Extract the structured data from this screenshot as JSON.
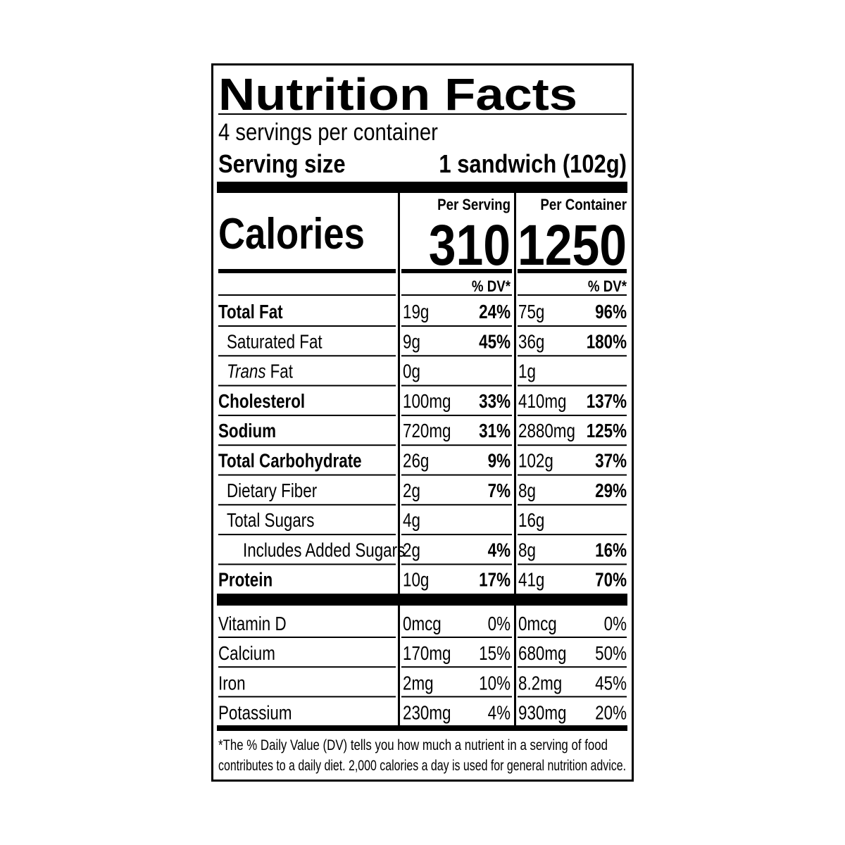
{
  "title": "Nutrition Facts",
  "servings": "4 servings per container",
  "serving_size": {
    "label": "Serving size",
    "value": "1 sandwich (102g)"
  },
  "columns": [
    "Per Serving",
    "Per Container"
  ],
  "calories": {
    "label": "Calories",
    "values": [
      310,
      1250
    ]
  },
  "dv_header": "% DV*",
  "nutrients": [
    {
      "name": "Total Fat",
      "bold": true,
      "indent": 0,
      "per_serving": {
        "amount": "19g",
        "dv": "24%"
      },
      "per_container": {
        "amount": "75g",
        "dv": "96%"
      }
    },
    {
      "name": "Saturated Fat",
      "bold": false,
      "indent": 1,
      "per_serving": {
        "amount": "9g",
        "dv": "45%"
      },
      "per_container": {
        "amount": "36g",
        "dv": "180%"
      }
    },
    {
      "name_italic_prefix": "Trans",
      "name": "Fat",
      "bold": false,
      "indent": 1,
      "per_serving": {
        "amount": "0g"
      },
      "per_container": {
        "amount": "1g"
      }
    },
    {
      "name": "Cholesterol",
      "bold": true,
      "indent": 0,
      "per_serving": {
        "amount": "100mg",
        "dv": "33%"
      },
      "per_container": {
        "amount": "410mg",
        "dv": "137%"
      }
    },
    {
      "name": "Sodium",
      "bold": true,
      "indent": 0,
      "per_serving": {
        "amount": "720mg",
        "dv": "31%"
      },
      "per_container": {
        "amount": "2880mg",
        "dv": "125%"
      }
    },
    {
      "name": "Total Carbohydrate",
      "bold": true,
      "indent": 0,
      "per_serving": {
        "amount": "26g",
        "dv": "9%"
      },
      "per_container": {
        "amount": "102g",
        "dv": "37%"
      }
    },
    {
      "name": "Dietary Fiber",
      "bold": false,
      "indent": 1,
      "per_serving": {
        "amount": "2g",
        "dv": "7%"
      },
      "per_container": {
        "amount": "8g",
        "dv": "29%"
      }
    },
    {
      "name": "Total Sugars",
      "bold": false,
      "indent": 1,
      "per_serving": {
        "amount": "4g"
      },
      "per_container": {
        "amount": "16g"
      }
    },
    {
      "name": "Includes Added Sugars",
      "bold": false,
      "indent": 2,
      "per_serving": {
        "amount": "2g",
        "dv": "4%"
      },
      "per_container": {
        "amount": "8g",
        "dv": "16%"
      }
    },
    {
      "name": "Protein",
      "bold": true,
      "indent": 0,
      "per_serving": {
        "amount": "10g",
        "dv": "17%"
      },
      "per_container": {
        "amount": "41g",
        "dv": "70%"
      }
    }
  ],
  "vitamins": [
    {
      "name": "Vitamin D",
      "per_serving": {
        "amount": "0mcg",
        "dv": "0%"
      },
      "per_container": {
        "amount": "0mcg",
        "dv": "0%"
      }
    },
    {
      "name": "Calcium",
      "per_serving": {
        "amount": "170mg",
        "dv": "15%"
      },
      "per_container": {
        "amount": "680mg",
        "dv": "50%"
      }
    },
    {
      "name": "Iron",
      "per_serving": {
        "amount": "2mg",
        "dv": "10%"
      },
      "per_container": {
        "amount": "8.2mg",
        "dv": "45%"
      }
    },
    {
      "name": "Potassium",
      "per_serving": {
        "amount": "230mg",
        "dv": "4%"
      },
      "per_container": {
        "amount": "930mg",
        "dv": "20%"
      }
    }
  ],
  "footnote": [
    "*The % Daily Value (DV) tells you how much a nutrient in a serving of food",
    "contributes to a daily diet. 2,000 calories a day is used for general nutrition advice."
  ]
}
